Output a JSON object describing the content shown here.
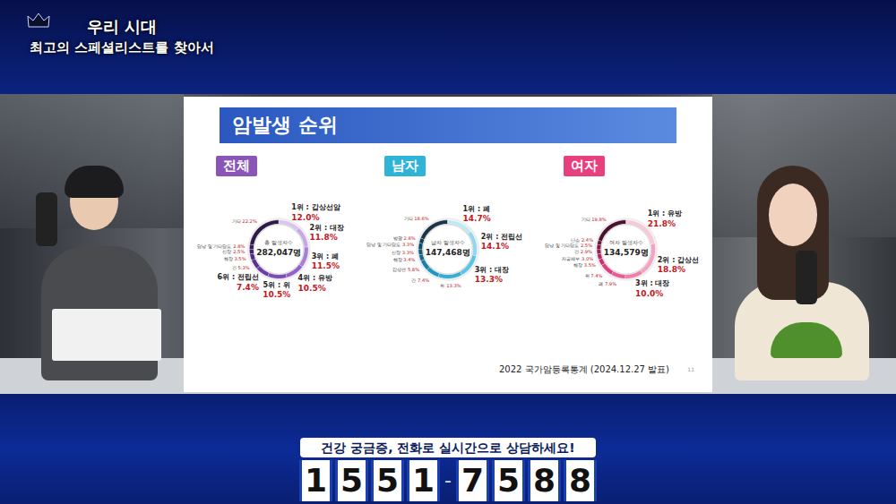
{
  "header": {
    "title": "우리 시대",
    "subtitle": "최고의 스페셜리스트를 찾아서"
  },
  "slide": {
    "title": "암발생 순위",
    "source": "2022 국가암등록통계 (2024.12.27 발표)",
    "page": "11"
  },
  "chart_data": [
    {
      "type": "pie",
      "title": "전체",
      "color": "#8b55b8",
      "center_label": "총 발생자수",
      "center_value": "282,047명",
      "categories": [
        "1위 : 갑상선암",
        "2위 : 대장",
        "3위 : 폐",
        "4위 : 유방",
        "5위 : 위",
        "6위 : 전립선",
        "간",
        "췌장",
        "신장",
        "담낭 및 기타담도",
        "기타"
      ],
      "values": [
        12.0,
        11.8,
        11.5,
        10.5,
        10.5,
        7.4,
        5.3,
        3.5,
        2.5,
        2.8,
        22.2
      ],
      "value_labels": [
        "12.0%",
        "11.8%",
        "11.5%",
        "10.5%",
        "10.5%",
        "7.4%",
        "5.3%",
        "3.5%",
        "2.5%",
        "2.8%",
        "22.2%"
      ],
      "colors": [
        "#d9c6ef",
        "#c6a8e6",
        "#a77fd6",
        "#9163c7",
        "#7d4db5",
        "#6c3ea3",
        "#5c3290",
        "#4f2a7d",
        "#44236c",
        "#3a1d5e",
        "#2e1a47"
      ],
      "data_labels": true
    },
    {
      "type": "pie",
      "title": "남자",
      "color": "#2fb3d6",
      "center_label": "남자 발생자수",
      "center_value": "147,468명",
      "categories": [
        "1위 : 폐",
        "2위 : 전립선",
        "3위 : 대장",
        "위",
        "간",
        "갑상선",
        "췌장",
        "신장",
        "담낭 및 기타담도",
        "방광",
        "기타"
      ],
      "values": [
        14.7,
        14.1,
        13.3,
        13.3,
        7.4,
        5.8,
        3.4,
        3.3,
        3.3,
        2.8,
        18.6
      ],
      "value_labels": [
        "14.7%",
        "14.1%",
        "13.3%",
        "13.3%",
        "7.4%",
        "5.8%",
        "3.4%",
        "3.3%",
        "3.3%",
        "2.8%",
        "18.6%"
      ],
      "colors": [
        "#bfe9f5",
        "#93d9ee",
        "#5cc4e3",
        "#35aed6",
        "#1f95c0",
        "#1a7fa6",
        "#17698b",
        "#145a77",
        "#124c66",
        "#103f56",
        "#1d3447"
      ],
      "data_labels": true
    },
    {
      "type": "pie",
      "title": "여자",
      "color": "#e8407f",
      "center_label": "여자 발생자수",
      "center_value": "134,579명",
      "categories": [
        "1위 : 유방",
        "2위 : 갑상선",
        "3위 : 대장",
        "폐",
        "위",
        "췌장",
        "자궁체부",
        "간",
        "담낭 및 기타담도",
        "난소",
        "기타"
      ],
      "values": [
        21.8,
        18.8,
        10.0,
        7.9,
        7.4,
        3.5,
        3.0,
        2.9,
        2.5,
        2.4,
        19.8
      ],
      "value_labels": [
        "21.8%",
        "18.8%",
        "10.0%",
        "7.9%",
        "7.4%",
        "3.5%",
        "3.0%",
        "2.9%",
        "2.5%",
        "2.4%",
        "19.8%"
      ],
      "colors": [
        "#f9c6da",
        "#f4a3c3",
        "#ee7fab",
        "#e85c94",
        "#df3f80",
        "#cc2f6f",
        "#b3255f",
        "#9a1f52",
        "#821a46",
        "#6b163b",
        "#4a1230"
      ],
      "data_labels": true
    }
  ],
  "banner": {
    "text": "건강 궁금증, 전화로 실시간으로 상담하세요!",
    "phone": "1551-7588"
  }
}
